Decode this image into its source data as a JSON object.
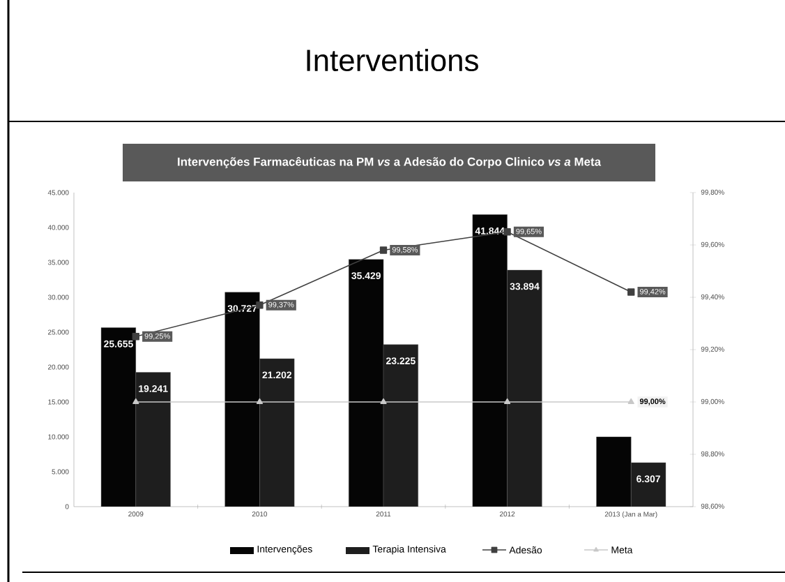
{
  "chart_data": {
    "type": "bar",
    "title": "Interventions",
    "subtitle": "Intervenções Farmacêuticas na PM *vs* a Adesão do Corpo Clinico *vs a* Meta",
    "categories": [
      "2009",
      "2010",
      "2011",
      "2012",
      "2013 (Jan a Mar)"
    ],
    "series": [
      {
        "name": "Intervenções",
        "color": "#050505",
        "values": [
          25655,
          30727,
          35429,
          41844,
          10000
        ],
        "value_labels": [
          "25.655",
          "30.727",
          "35.429",
          "41.844",
          null
        ]
      },
      {
        "name": "Terapia Intensiva",
        "color": "#1e1e1e",
        "values": [
          19241,
          21202,
          23225,
          33894,
          6307
        ],
        "value_labels": [
          "19.241",
          "21.202",
          "23.225",
          "33.894",
          "6.307"
        ]
      },
      {
        "name": "Adesão",
        "type": "line",
        "axis": "y2",
        "marker": "square",
        "color": "#404040",
        "values": [
          99.25,
          99.37,
          99.58,
          99.65,
          99.42
        ],
        "value_labels": [
          "99,25%",
          "99,37%",
          "99,58%",
          "99,65%",
          "99,42%"
        ]
      },
      {
        "name": "Meta",
        "type": "line",
        "axis": "y2",
        "marker": "triangle",
        "color": "#c8c8c8",
        "values": [
          99.0,
          99.0,
          99.0,
          99.0,
          99.0
        ],
        "value_labels": [
          null,
          null,
          null,
          null,
          "99,00%"
        ]
      }
    ],
    "ylim": [
      0,
      45000
    ],
    "yticks": [
      {
        "value": 0,
        "label": "0"
      },
      {
        "value": 5000,
        "label": "5.000"
      },
      {
        "value": 10000,
        "label": "10.000"
      },
      {
        "value": 15000,
        "label": "15.000"
      },
      {
        "value": 20000,
        "label": "20.000"
      },
      {
        "value": 25000,
        "label": "25.000"
      },
      {
        "value": 30000,
        "label": "30.000"
      },
      {
        "value": 35000,
        "label": "35.000"
      },
      {
        "value": 40000,
        "label": "40.000"
      },
      {
        "value": 45000,
        "label": "45.000"
      }
    ],
    "y2lim": [
      98.6,
      99.8
    ],
    "y2ticks": [
      {
        "value": 98.6,
        "label": "98,60%"
      },
      {
        "value": 98.8,
        "label": "98,80%"
      },
      {
        "value": 99.0,
        "label": "99,00%"
      },
      {
        "value": 99.2,
        "label": "99,20%"
      },
      {
        "value": 99.4,
        "label": "99,40%"
      },
      {
        "value": 99.6,
        "label": "99,60%"
      },
      {
        "value": 99.8,
        "label": "99,80%"
      }
    ],
    "legend": "bottom"
  }
}
